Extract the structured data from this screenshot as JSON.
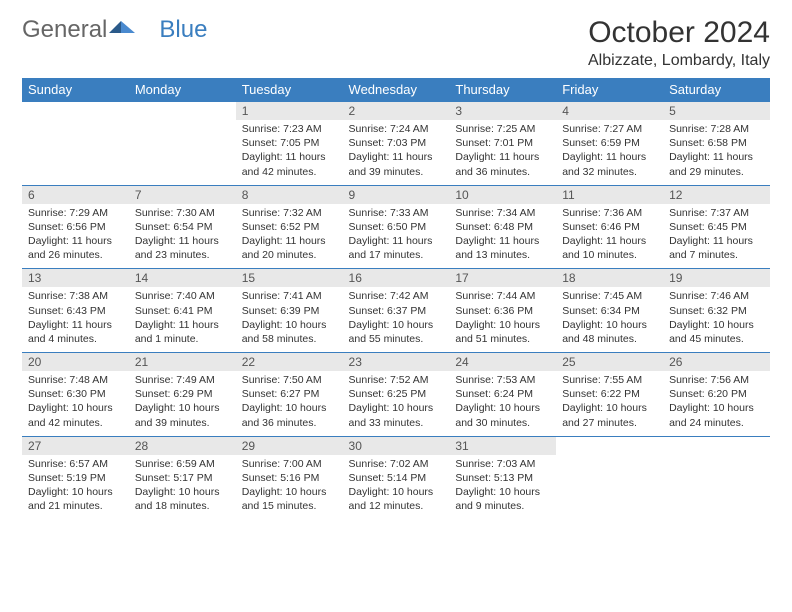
{
  "logo": {
    "text1": "General",
    "text2": "Blue"
  },
  "title": "October 2024",
  "location": "Albizzate, Lombardy, Italy",
  "colors": {
    "header_bg": "#3a7ebf",
    "header_text": "#ffffff",
    "daynum_bg": "#e8e8e8",
    "daynum_text": "#555555",
    "border": "#3a7ebf",
    "body_text": "#333333"
  },
  "day_headers": [
    "Sunday",
    "Monday",
    "Tuesday",
    "Wednesday",
    "Thursday",
    "Friday",
    "Saturday"
  ],
  "weeks": [
    [
      null,
      null,
      {
        "n": "1",
        "sr": "7:23 AM",
        "ss": "7:05 PM",
        "dl": "11 hours and 42 minutes."
      },
      {
        "n": "2",
        "sr": "7:24 AM",
        "ss": "7:03 PM",
        "dl": "11 hours and 39 minutes."
      },
      {
        "n": "3",
        "sr": "7:25 AM",
        "ss": "7:01 PM",
        "dl": "11 hours and 36 minutes."
      },
      {
        "n": "4",
        "sr": "7:27 AM",
        "ss": "6:59 PM",
        "dl": "11 hours and 32 minutes."
      },
      {
        "n": "5",
        "sr": "7:28 AM",
        "ss": "6:58 PM",
        "dl": "11 hours and 29 minutes."
      }
    ],
    [
      {
        "n": "6",
        "sr": "7:29 AM",
        "ss": "6:56 PM",
        "dl": "11 hours and 26 minutes."
      },
      {
        "n": "7",
        "sr": "7:30 AM",
        "ss": "6:54 PM",
        "dl": "11 hours and 23 minutes."
      },
      {
        "n": "8",
        "sr": "7:32 AM",
        "ss": "6:52 PM",
        "dl": "11 hours and 20 minutes."
      },
      {
        "n": "9",
        "sr": "7:33 AM",
        "ss": "6:50 PM",
        "dl": "11 hours and 17 minutes."
      },
      {
        "n": "10",
        "sr": "7:34 AM",
        "ss": "6:48 PM",
        "dl": "11 hours and 13 minutes."
      },
      {
        "n": "11",
        "sr": "7:36 AM",
        "ss": "6:46 PM",
        "dl": "11 hours and 10 minutes."
      },
      {
        "n": "12",
        "sr": "7:37 AM",
        "ss": "6:45 PM",
        "dl": "11 hours and 7 minutes."
      }
    ],
    [
      {
        "n": "13",
        "sr": "7:38 AM",
        "ss": "6:43 PM",
        "dl": "11 hours and 4 minutes."
      },
      {
        "n": "14",
        "sr": "7:40 AM",
        "ss": "6:41 PM",
        "dl": "11 hours and 1 minute."
      },
      {
        "n": "15",
        "sr": "7:41 AM",
        "ss": "6:39 PM",
        "dl": "10 hours and 58 minutes."
      },
      {
        "n": "16",
        "sr": "7:42 AM",
        "ss": "6:37 PM",
        "dl": "10 hours and 55 minutes."
      },
      {
        "n": "17",
        "sr": "7:44 AM",
        "ss": "6:36 PM",
        "dl": "10 hours and 51 minutes."
      },
      {
        "n": "18",
        "sr": "7:45 AM",
        "ss": "6:34 PM",
        "dl": "10 hours and 48 minutes."
      },
      {
        "n": "19",
        "sr": "7:46 AM",
        "ss": "6:32 PM",
        "dl": "10 hours and 45 minutes."
      }
    ],
    [
      {
        "n": "20",
        "sr": "7:48 AM",
        "ss": "6:30 PM",
        "dl": "10 hours and 42 minutes."
      },
      {
        "n": "21",
        "sr": "7:49 AM",
        "ss": "6:29 PM",
        "dl": "10 hours and 39 minutes."
      },
      {
        "n": "22",
        "sr": "7:50 AM",
        "ss": "6:27 PM",
        "dl": "10 hours and 36 minutes."
      },
      {
        "n": "23",
        "sr": "7:52 AM",
        "ss": "6:25 PM",
        "dl": "10 hours and 33 minutes."
      },
      {
        "n": "24",
        "sr": "7:53 AM",
        "ss": "6:24 PM",
        "dl": "10 hours and 30 minutes."
      },
      {
        "n": "25",
        "sr": "7:55 AM",
        "ss": "6:22 PM",
        "dl": "10 hours and 27 minutes."
      },
      {
        "n": "26",
        "sr": "7:56 AM",
        "ss": "6:20 PM",
        "dl": "10 hours and 24 minutes."
      }
    ],
    [
      {
        "n": "27",
        "sr": "6:57 AM",
        "ss": "5:19 PM",
        "dl": "10 hours and 21 minutes."
      },
      {
        "n": "28",
        "sr": "6:59 AM",
        "ss": "5:17 PM",
        "dl": "10 hours and 18 minutes."
      },
      {
        "n": "29",
        "sr": "7:00 AM",
        "ss": "5:16 PM",
        "dl": "10 hours and 15 minutes."
      },
      {
        "n": "30",
        "sr": "7:02 AM",
        "ss": "5:14 PM",
        "dl": "10 hours and 12 minutes."
      },
      {
        "n": "31",
        "sr": "7:03 AM",
        "ss": "5:13 PM",
        "dl": "10 hours and 9 minutes."
      },
      null,
      null
    ]
  ],
  "labels": {
    "sunrise": "Sunrise: ",
    "sunset": "Sunset: ",
    "daylight": "Daylight: "
  }
}
